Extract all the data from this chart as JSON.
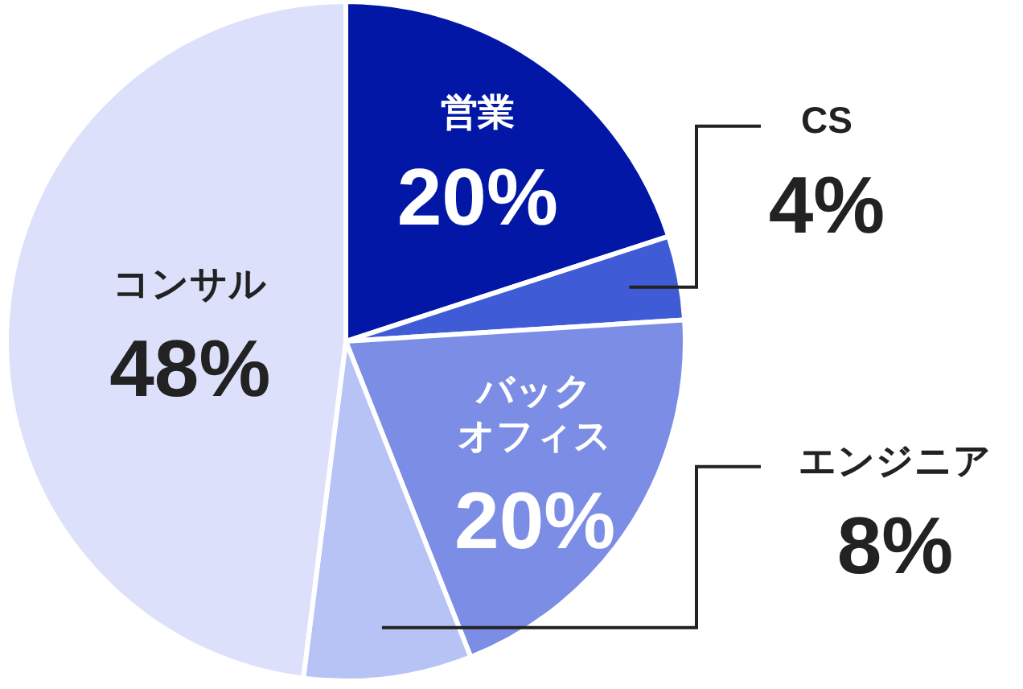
{
  "chart_data": {
    "type": "pie",
    "categories": [
      "営業",
      "CS",
      "バックオフィス",
      "エンジニア",
      "コンサル"
    ],
    "values": [
      20,
      4,
      20,
      8,
      48
    ],
    "colors": [
      "#0217a6",
      "#3f5bd6",
      "#7b8de4",
      "#b7c3f5",
      "#dce0fb"
    ],
    "value_labels": [
      "20%",
      "4%",
      "20%",
      "8%",
      "48%"
    ]
  }
}
